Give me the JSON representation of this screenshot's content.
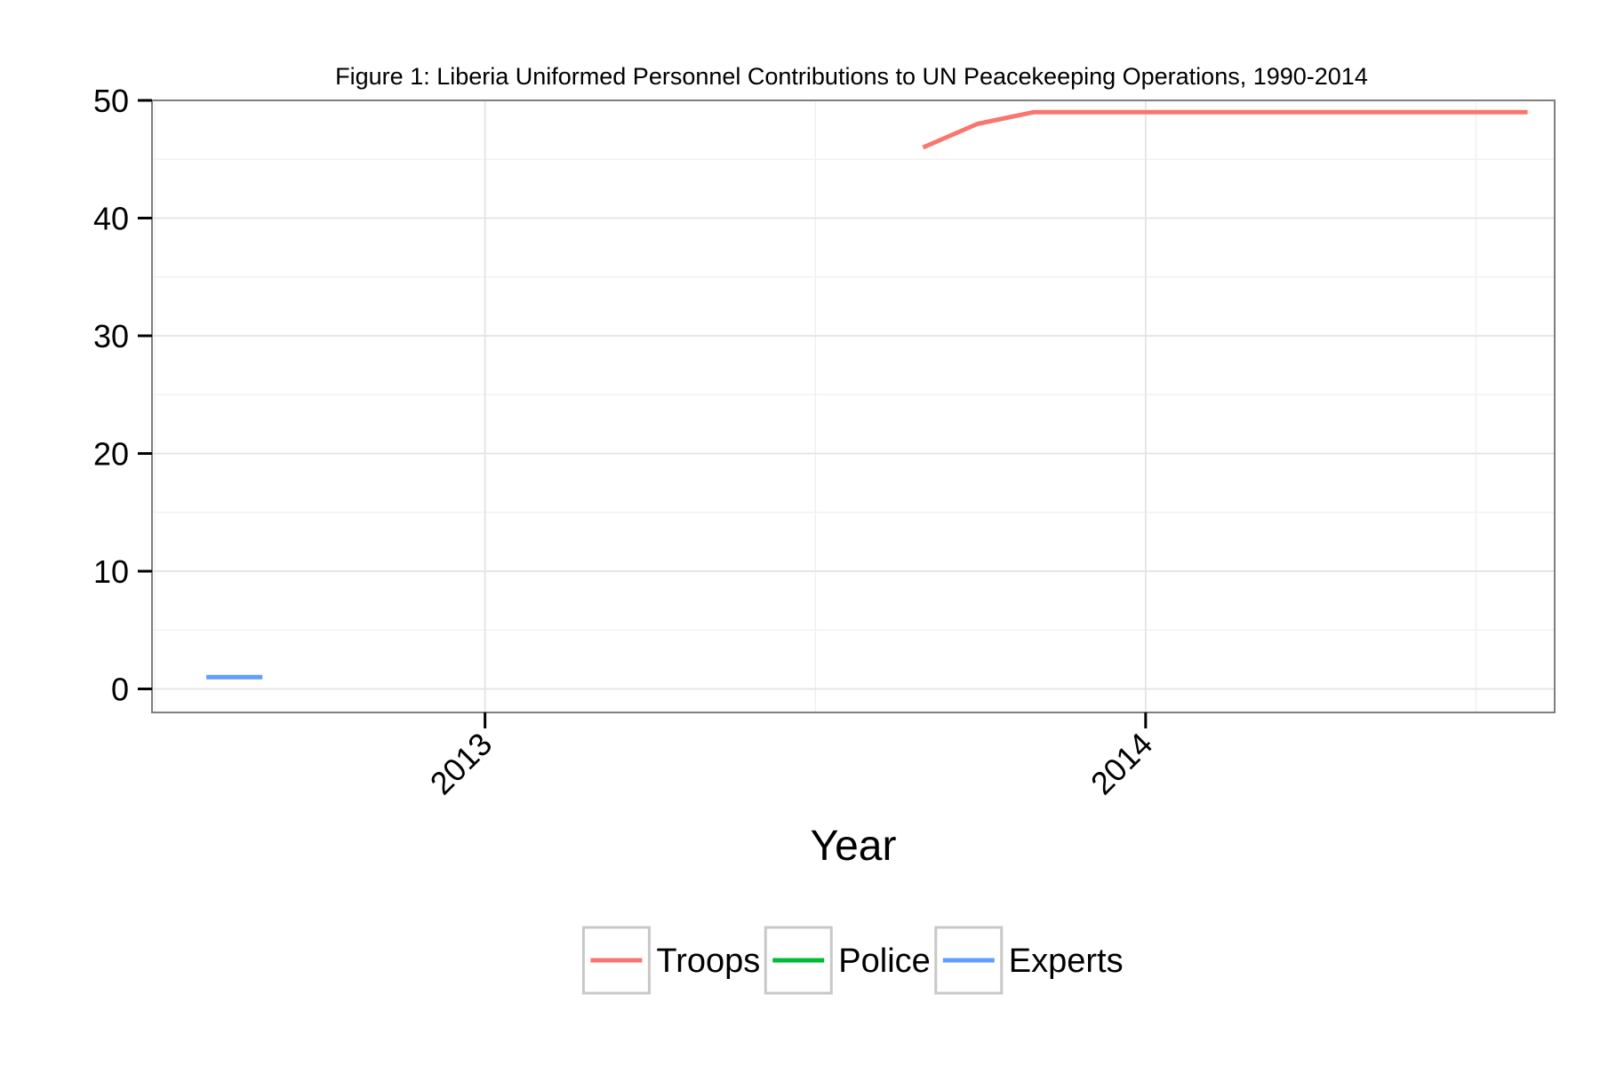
{
  "chart_data": {
    "type": "line",
    "title": "Figure 1: Liberia Uniformed Personnel Contributions to UN Peacekeeping Operations, 1990-2014",
    "xlabel": "Year",
    "ylabel": "",
    "x_type": "date",
    "xlim": [
      "2012-07-01",
      "2014-08-15"
    ],
    "ylim": [
      -2,
      50
    ],
    "x_ticks": [
      {
        "value": "2013-01-01",
        "label": "2013"
      },
      {
        "value": "2014-01-01",
        "label": "2014"
      }
    ],
    "y_ticks": [
      0,
      10,
      20,
      30,
      40,
      50
    ],
    "grid": true,
    "legend_position": "bottom",
    "series": [
      {
        "name": "Troops",
        "color": "#f8766d",
        "x": [
          "2013-08-31",
          "2013-09-30",
          "2013-10-31",
          "2013-11-30",
          "2013-12-31",
          "2014-01-31",
          "2014-02-28",
          "2014-03-31",
          "2014-04-30",
          "2014-05-31",
          "2014-06-30",
          "2014-07-31"
        ],
        "values": [
          46,
          48,
          49,
          49,
          49,
          49,
          49,
          49,
          49,
          49,
          49,
          49
        ]
      },
      {
        "name": "Police",
        "color": "#00ba38",
        "x": [],
        "values": []
      },
      {
        "name": "Experts",
        "color": "#619cff",
        "x": [
          "2012-07-31",
          "2012-08-31"
        ],
        "values": [
          1,
          1
        ]
      }
    ]
  }
}
